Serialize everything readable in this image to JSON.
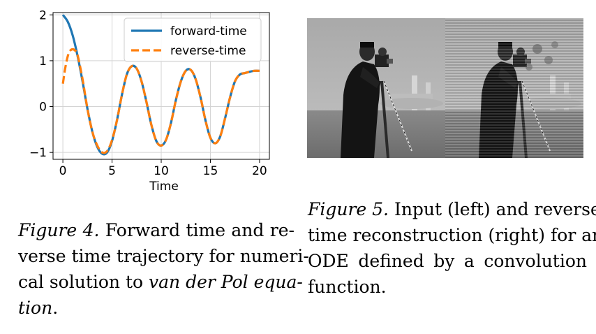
{
  "figure4": {
    "chart_data": {
      "type": "line",
      "xlabel": "Time",
      "xlim": [
        -1,
        21
      ],
      "ylim": [
        -1.15,
        2.05
      ],
      "x_ticks": [
        "0",
        "5",
        "10",
        "15",
        "20"
      ],
      "x_tick_values": [
        0,
        5,
        10,
        15,
        20
      ],
      "y_ticks": [
        "2",
        "1",
        "0",
        "−1"
      ],
      "y_tick_values": [
        2,
        1,
        0,
        -1
      ],
      "grid": true,
      "legend_position": "top-right",
      "series": [
        {
          "name": "forward-time",
          "color": "#1f77b4",
          "style": "solid",
          "x": [
            0,
            0.5,
            1,
            1.5,
            2,
            2.5,
            3,
            3.5,
            4,
            4.5,
            5,
            5.5,
            6,
            6.5,
            7,
            7.5,
            8,
            8.5,
            9,
            9.5,
            10,
            10.5,
            11,
            11.5,
            12,
            12.5,
            13,
            13.5,
            14,
            14.5,
            15,
            15.5,
            16,
            16.5,
            17,
            17.5,
            18,
            18.5,
            19,
            19.5,
            20
          ],
          "y": [
            2.0,
            1.85,
            1.55,
            1.1,
            0.55,
            -0.05,
            -0.55,
            -0.88,
            -1.03,
            -1.0,
            -0.75,
            -0.3,
            0.25,
            0.7,
            0.88,
            0.83,
            0.55,
            0.1,
            -0.4,
            -0.75,
            -0.85,
            -0.72,
            -0.35,
            0.15,
            0.55,
            0.78,
            0.8,
            0.6,
            0.2,
            -0.3,
            -0.68,
            -0.8,
            -0.65,
            -0.25,
            0.2,
            0.55,
            0.7,
            0.73,
            0.76,
            0.78,
            0.78
          ]
        },
        {
          "name": "reverse-time",
          "color": "#ff7f0e",
          "style": "dashed",
          "x": [
            0,
            0.25,
            0.5,
            0.75,
            1,
            1.25,
            1.5,
            2,
            2.5,
            3,
            3.5,
            4,
            4.5,
            5,
            5.5,
            6,
            6.5,
            7,
            7.5,
            8,
            8.5,
            9,
            9.5,
            10,
            10.5,
            11,
            11.5,
            12,
            12.5,
            13,
            13.5,
            14,
            14.5,
            15,
            15.5,
            16,
            16.5,
            17,
            17.5,
            18,
            18.5,
            19,
            19.5,
            20
          ],
          "y": [
            0.5,
            0.85,
            1.1,
            1.22,
            1.25,
            1.22,
            1.12,
            0.6,
            -0.05,
            -0.55,
            -0.85,
            -1.0,
            -0.97,
            -0.73,
            -0.3,
            0.25,
            0.7,
            0.88,
            0.83,
            0.55,
            0.1,
            -0.4,
            -0.75,
            -0.85,
            -0.72,
            -0.35,
            0.15,
            0.55,
            0.78,
            0.8,
            0.6,
            0.2,
            -0.3,
            -0.68,
            -0.8,
            -0.65,
            -0.25,
            0.2,
            0.55,
            0.7,
            0.73,
            0.76,
            0.78,
            0.78
          ]
        }
      ]
    },
    "caption": {
      "label": "Figure 4.",
      "line1_rest": " Forward time and re-",
      "line2": "verse time trajectory for numeri-",
      "line3_a": "cal solution to ",
      "line3_b": "van der Pol equa-",
      "line4_a": "tion",
      "line4_b": "."
    }
  },
  "figure5": {
    "caption": {
      "label": "Figure 5.",
      "line1_rest": " Input (left) and reverse-",
      "line2": "time reconstruction (right) for an",
      "line3": "ODE defined by a convolution",
      "line4": "function."
    }
  }
}
